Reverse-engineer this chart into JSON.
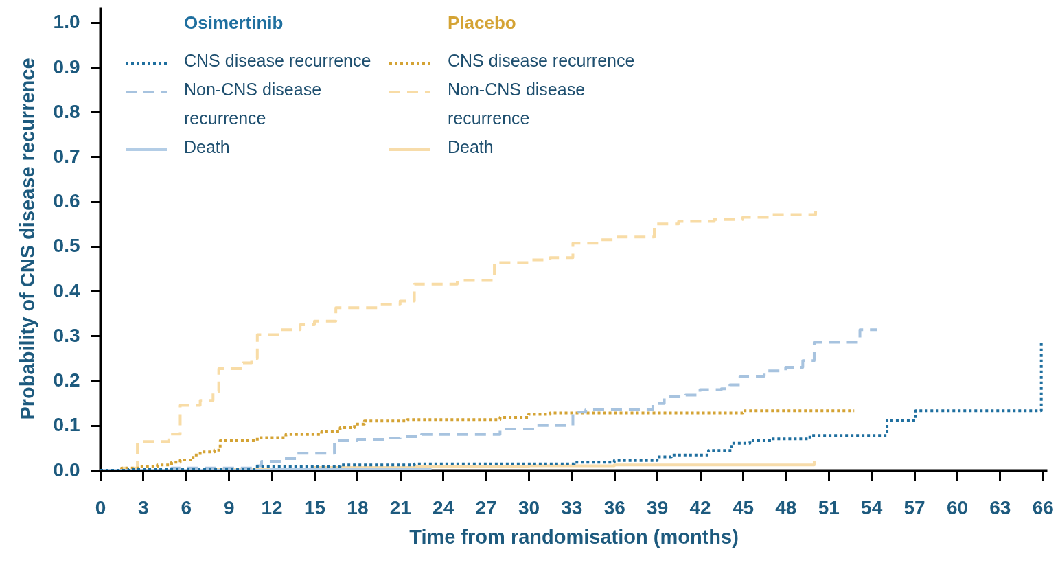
{
  "chart_data": {
    "type": "step",
    "xlabel": "Time from randomisation (months)",
    "ylabel": "Probability of CNS disease recurrence",
    "annotations": [
      "Osimertinib",
      "Placebo"
    ],
    "legend": "top left",
    "xlim": [
      0,
      66.3
    ],
    "ylim": [
      0,
      1.035
    ],
    "xticks": [
      0,
      3,
      6,
      9,
      12,
      15,
      18,
      21,
      24,
      27,
      30,
      33,
      36,
      39,
      42,
      45,
      48,
      51,
      54,
      57,
      60,
      63,
      66
    ],
    "yticks": [
      {
        "value": 0,
        "label": "0.0"
      },
      0.1,
      0.2,
      0.3,
      0.4,
      0.5,
      0.6,
      0.7,
      0.8,
      0.9,
      {
        "value": 1,
        "label": "1.0"
      }
    ],
    "series": [
      {
        "name": "CNS disease recurrence",
        "color": "#1f6f9f",
        "line_style": "dotted",
        "x": [
          0,
          2.0,
          10.9,
          16.8,
          22.0,
          33.2,
          36.0,
          39.0,
          40.0,
          42.6,
          44.2,
          45.5,
          47.0,
          49.7,
          55.1,
          57.1,
          65.9
        ],
        "values": [
          0,
          0.003,
          0.008,
          0.012,
          0.014,
          0.018,
          0.022,
          0.03,
          0.034,
          0.044,
          0.06,
          0.066,
          0.07,
          0.078,
          0.112,
          0.133,
          0.288
        ]
      },
      {
        "name": "Non-CNS disease recurrence",
        "color": "#a7c3df",
        "line_style": "dashed",
        "x": [
          0,
          5.0,
          10.9,
          11.3,
          12.7,
          13.8,
          16.4,
          18.0,
          20.0,
          21.0,
          22.5,
          28.0,
          30.5,
          33.1,
          34.0,
          38.7,
          39.5,
          41.0,
          42.0,
          43.5,
          44.1,
          44.8,
          46.5,
          48.0,
          49.2,
          50.0,
          53.2,
          54.4
        ],
        "values": [
          0,
          0.005,
          0.01,
          0.02,
          0.026,
          0.038,
          0.066,
          0.069,
          0.072,
          0.075,
          0.08,
          0.092,
          0.1,
          0.13,
          0.135,
          0.149,
          0.164,
          0.168,
          0.18,
          0.182,
          0.191,
          0.21,
          0.222,
          0.23,
          0.245,
          0.286,
          0.314,
          0.314
        ]
      },
      {
        "name": "Death",
        "color": "#b3cde6",
        "line_style": "solid",
        "x": [
          0,
          12.0,
          23.2
        ],
        "values": [
          0,
          0.002,
          0.002
        ]
      },
      {
        "name": "CNS disease recurrence",
        "color": "#d4a334",
        "line_style": "dotted",
        "x": [
          0,
          1.5,
          2.8,
          4.0,
          5.0,
          5.6,
          6.5,
          7.0,
          8.0,
          8.4,
          11.0,
          13.0,
          15.5,
          16.8,
          17.8,
          18.5,
          21.5,
          28.0,
          30.0,
          31.5,
          45.0,
          52.8
        ],
        "values": [
          0,
          0.005,
          0.008,
          0.012,
          0.018,
          0.023,
          0.034,
          0.041,
          0.045,
          0.066,
          0.073,
          0.08,
          0.086,
          0.095,
          0.103,
          0.11,
          0.113,
          0.118,
          0.125,
          0.128,
          0.133,
          0.133
        ]
      },
      {
        "name": "Non-CNS disease recurrence",
        "color": "#f8dca6",
        "line_style": "dashed",
        "x": [
          0,
          1.5,
          2.6,
          4.8,
          5.6,
          7.0,
          7.9,
          8.3,
          10.0,
          10.6,
          11.0,
          12.6,
          14.0,
          15.0,
          16.5,
          19.5,
          21.0,
          22.0,
          25.0,
          27.6,
          30.0,
          31.5,
          33.1,
          35.0,
          36.0,
          38.8,
          40.5,
          43.0,
          45.0,
          47.0,
          50.1
        ],
        "values": [
          0,
          0.005,
          0.064,
          0.081,
          0.145,
          0.156,
          0.176,
          0.227,
          0.24,
          0.25,
          0.303,
          0.314,
          0.325,
          0.333,
          0.363,
          0.37,
          0.378,
          0.416,
          0.424,
          0.464,
          0.47,
          0.475,
          0.507,
          0.515,
          0.521,
          0.55,
          0.556,
          0.56,
          0.565,
          0.571,
          0.583
        ]
      },
      {
        "name": "Death",
        "color": "#f7dcaa",
        "line_style": "solid",
        "x": [
          0,
          8.0,
          15.0,
          22.0,
          30.0,
          36.0,
          50.0
        ],
        "values": [
          0,
          0.003,
          0.006,
          0.008,
          0.01,
          0.012,
          0.02
        ]
      }
    ]
  }
}
